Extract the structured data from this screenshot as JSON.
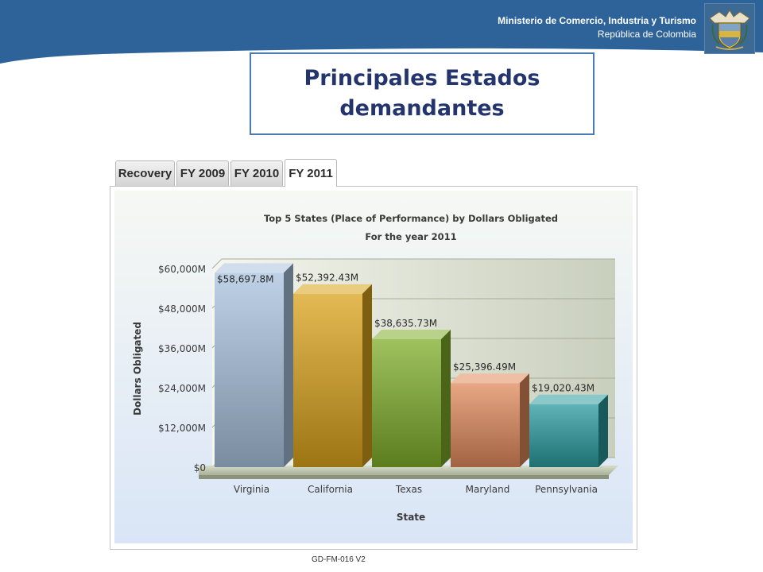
{
  "header": {
    "ministry_name": "Ministerio de Comercio, Industria y Turismo",
    "country": "República de Colombia",
    "accent_color": "#2e6399"
  },
  "slide_title": "Principales Estados\ndemandantes",
  "tabs": [
    {
      "label": "Recovery",
      "active": false
    },
    {
      "label": "FY 2009",
      "active": false
    },
    {
      "label": "FY 2010",
      "active": false
    },
    {
      "label": "FY 2011",
      "active": true
    }
  ],
  "chart_data": {
    "type": "bar",
    "title": "Top 5 States (Place of Performance) by Dollars Obligated",
    "subtitle": "For the year 2011",
    "xlabel": "State",
    "ylabel": "Dollars Obligated",
    "categories": [
      "Virginia",
      "California",
      "Texas",
      "Maryland",
      "Pennsylvania"
    ],
    "values": [
      58697.8,
      52392.43,
      38635.73,
      25396.49,
      19020.43
    ],
    "data_labels": [
      "$58,697.8M",
      "$52,392.43M",
      "$38,635.73M",
      "$25,396.49M",
      "$19,020.43M"
    ],
    "yticks": [
      "$0",
      "$12,000M",
      "$24,000M",
      "$36,000M",
      "$48,000M",
      "$60,000M"
    ],
    "ylim": [
      0,
      60000
    ],
    "grid": true,
    "bar_colors": [
      "#a9c2de",
      "#d9a21a",
      "#7fae2a",
      "#e08a5c",
      "#2a9b9f"
    ]
  },
  "footer_code": "GD-FM-016 V2"
}
